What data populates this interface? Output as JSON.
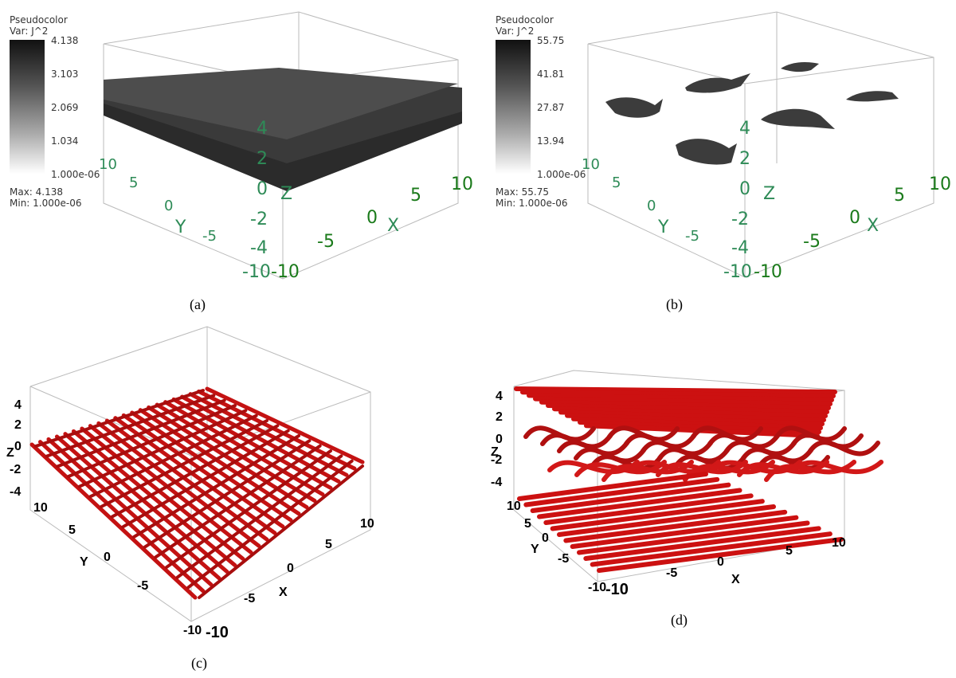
{
  "panel_a": {
    "legend": {
      "title": "Pseudocolor",
      "var": "Var: J^2",
      "ticks": [
        "4.138",
        "3.103",
        "2.069",
        "1.034",
        "1.000e-06"
      ],
      "max": "Max:  4.138",
      "min": "Min:  1.000e-06"
    },
    "caption": "(a)",
    "axes": {
      "x_label": "X",
      "y_label": "Y",
      "z_label": "Z",
      "x_ticks": [
        "-10",
        "-5",
        "0",
        "5",
        "10"
      ],
      "y_ticks": [
        "10",
        "5",
        "0",
        "-5"
      ],
      "z_ticks": [
        "-10",
        "-4",
        "-2",
        "0",
        "2",
        "4"
      ]
    }
  },
  "panel_b": {
    "legend": {
      "title": "Pseudocolor",
      "var": "Var: J^2",
      "ticks": [
        "55.75",
        "41.81",
        "27.87",
        "13.94",
        "1.000e-06"
      ],
      "max": "Max:  55.75",
      "min": "Min:  1.000e-06"
    },
    "caption": "(b)",
    "axes": {
      "x_label": "X",
      "y_label": "Y",
      "z_label": "Z",
      "x_ticks": [
        "-10",
        "-5",
        "0",
        "5",
        "10"
      ],
      "y_ticks": [
        "10",
        "5",
        "0",
        "-5"
      ],
      "z_ticks": [
        "-10",
        "-4",
        "-2",
        "0",
        "2",
        "4"
      ]
    }
  },
  "panel_c": {
    "caption": "(c)",
    "axes": {
      "x_label": "X",
      "y_label": "Y",
      "z_label": "Z",
      "x_ticks": [
        "-10",
        "-5",
        "0",
        "5",
        "10"
      ],
      "y_ticks": [
        "10",
        "5",
        "0",
        "-5",
        "-10"
      ],
      "z_ticks": [
        "4",
        "2",
        "0",
        "-2",
        "-4"
      ]
    }
  },
  "panel_d": {
    "caption": "(d)",
    "axes": {
      "x_label": "X",
      "y_label": "Y",
      "z_label": "Z",
      "x_ticks": [
        "-10",
        "-5",
        "0",
        "5",
        "10"
      ],
      "y_ticks": [
        "10",
        "5",
        "0",
        "-5",
        "-10"
      ],
      "z_ticks": [
        "4",
        "2",
        "0",
        "-2",
        "-4"
      ]
    }
  },
  "colors": {
    "tube_red": "#cc1111",
    "axis_green": "#2e8b57",
    "sheet_gray": "#4a4a4a"
  }
}
